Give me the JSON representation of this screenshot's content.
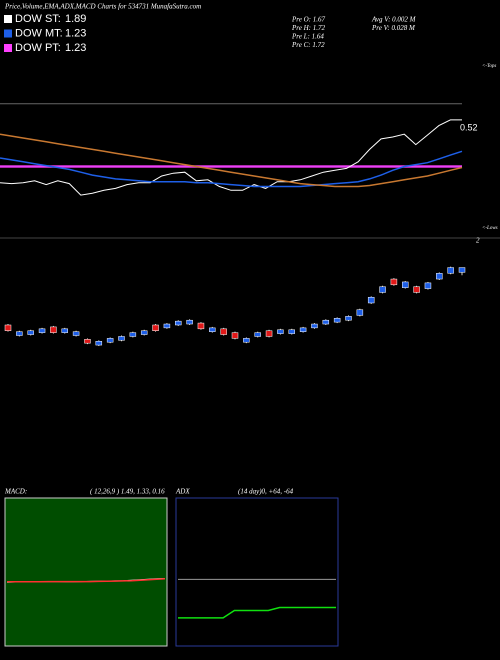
{
  "chart_data": [
    {
      "type": "line",
      "title": "Price,Volume,EMA,ADX,MACD Charts for 534731 MunafaSutra.com",
      "legend": [
        {
          "name": "DOW ST:",
          "value": 1.89,
          "color": "#ffffff"
        },
        {
          "name": "DOW MT:",
          "value": 1.23,
          "color": "#1e5fe8"
        },
        {
          "name": "DOW PT:",
          "value": 1.23,
          "color": "#ff40ff"
        }
      ],
      "info": [
        "Pre   O: 1.67",
        "Pre   H: 1.72",
        "Pre   L: 1.64",
        "Pre   C: 1.72",
        "Avg V: 0.002  M",
        "Pre   V: 0.028  M"
      ],
      "annotation": "0.52",
      "tops_label": "<-Tops",
      "lows_label": "<-Lows",
      "ylim": [
        0.51,
        2.35
      ],
      "series": [
        {
          "color": "#ffffff",
          "values": [
            1.06,
            1.05,
            1.06,
            1.08,
            1.04,
            1.08,
            1.05,
            0.93,
            0.95,
            0.98,
            1.0,
            1.04,
            1.06,
            1.06,
            1.13,
            1.16,
            1.17,
            1.08,
            1.09,
            1.02,
            0.98,
            0.98,
            1.04,
            1.0,
            1.07,
            1.07,
            1.09,
            1.13,
            1.17,
            1.19,
            1.21,
            1.28,
            1.41,
            1.52,
            1.54,
            1.57,
            1.46,
            1.56,
            1.66,
            1.72,
            1.72
          ]
        },
        {
          "color": "#1e5fe8",
          "values": [
            1.32,
            1.3,
            1.28,
            1.26,
            1.24,
            1.22,
            1.2,
            1.17,
            1.14,
            1.12,
            1.1,
            1.09,
            1.08,
            1.07,
            1.07,
            1.07,
            1.07,
            1.06,
            1.06,
            1.05,
            1.04,
            1.03,
            1.02,
            1.02,
            1.02,
            1.02,
            1.02,
            1.03,
            1.04,
            1.05,
            1.06,
            1.07,
            1.1,
            1.14,
            1.19,
            1.23,
            1.25,
            1.27,
            1.31,
            1.35,
            1.39
          ]
        },
        {
          "color": "#c87830",
          "values": [
            1.57,
            1.55,
            1.53,
            1.51,
            1.49,
            1.47,
            1.45,
            1.43,
            1.41,
            1.39,
            1.37,
            1.35,
            1.33,
            1.31,
            1.29,
            1.27,
            1.25,
            1.23,
            1.21,
            1.19,
            1.17,
            1.15,
            1.13,
            1.11,
            1.09,
            1.07,
            1.05,
            1.04,
            1.03,
            1.02,
            1.02,
            1.02,
            1.03,
            1.05,
            1.07,
            1.09,
            1.11,
            1.13,
            1.16,
            1.19,
            1.22
          ]
        }
      ]
    },
    {
      "type": "candlestick",
      "ylim": [
        -0.5,
        2.05
      ],
      "yticks": [
        2
      ],
      "up_color": "#1e5fe8",
      "down_color": "#e01818",
      "open": [
        1.12,
        1.01,
        1.02,
        1.04,
        1.1,
        1.04,
        1.01,
        0.97,
        0.91,
        0.94,
        0.96,
        1.0,
        1.02,
        1.12,
        1.09,
        1.12,
        1.13,
        1.14,
        1.05,
        1.08,
        1.04,
        0.94,
        1.0,
        1.06,
        1.03,
        1.03,
        1.05,
        1.09,
        1.13,
        1.15,
        1.17,
        1.22,
        1.35,
        1.46,
        1.6,
        1.51,
        1.52,
        1.5,
        1.6,
        1.66,
        1.67
      ],
      "high": [
        1.13,
        1.06,
        1.07,
        1.09,
        1.11,
        1.09,
        1.06,
        0.98,
        0.96,
        0.99,
        1.01,
        1.05,
        1.07,
        1.13,
        1.14,
        1.17,
        1.18,
        1.15,
        1.1,
        1.09,
        1.05,
        0.99,
        1.05,
        1.07,
        1.08,
        1.08,
        1.1,
        1.14,
        1.18,
        1.2,
        1.22,
        1.29,
        1.42,
        1.53,
        1.61,
        1.58,
        1.53,
        1.57,
        1.67,
        1.73,
        1.72
      ],
      "low": [
        1.05,
        1.0,
        1.01,
        1.03,
        1.03,
        1.03,
        1.0,
        0.92,
        0.9,
        0.93,
        0.95,
        0.99,
        1.01,
        1.05,
        1.08,
        1.11,
        1.12,
        1.07,
        1.04,
        1.01,
        0.97,
        0.93,
        0.99,
        0.99,
        1.02,
        1.02,
        1.04,
        1.08,
        1.12,
        1.14,
        1.16,
        1.21,
        1.34,
        1.45,
        1.53,
        1.5,
        1.45,
        1.49,
        1.59,
        1.65,
        1.64
      ],
      "close": [
        1.06,
        1.05,
        1.06,
        1.08,
        1.04,
        1.08,
        1.05,
        0.93,
        0.95,
        0.98,
        1.0,
        1.04,
        1.06,
        1.06,
        1.13,
        1.16,
        1.17,
        1.08,
        1.09,
        1.02,
        0.98,
        0.98,
        1.04,
        1.0,
        1.07,
        1.07,
        1.09,
        1.13,
        1.17,
        1.19,
        1.21,
        1.28,
        1.41,
        1.52,
        1.54,
        1.57,
        1.46,
        1.56,
        1.66,
        1.72,
        1.72
      ]
    },
    {
      "type": "line",
      "title": "MACD:",
      "params": "( 12,26,9 ) 1.49,  1.33,  0.16",
      "background": "#004d00",
      "ylim": [
        -35,
        45
      ],
      "series": [
        {
          "color": "#ffffff",
          "values": [
            -0.5,
            -0.4,
            -0.3,
            -0.3,
            -0.2,
            -0.2,
            -0.2,
            -0.3,
            -0.3,
            -0.2,
            -0.1,
            0,
            0.1,
            0.2,
            0.3,
            0.5,
            0.8,
            1.1,
            1.3,
            1.49
          ]
        },
        {
          "color": "#ff3030",
          "values": [
            -0.3,
            -0.3,
            -0.3,
            -0.3,
            -0.3,
            -0.2,
            -0.2,
            -0.2,
            -0.2,
            -0.2,
            -0.2,
            -0.1,
            0,
            0.1,
            0.2,
            0.3,
            0.5,
            0.8,
            1.1,
            1.33
          ]
        }
      ]
    },
    {
      "type": "line",
      "title": "ADX",
      "params": "(14  day)0,  +64,  -64",
      "background": "#000000",
      "ylim": [
        0,
        100
      ],
      "series": [
        {
          "color": "#9a9a9a",
          "values": [
            45,
            45,
            45,
            45,
            45,
            45,
            45,
            45,
            45,
            45,
            45,
            45,
            45,
            45,
            45
          ]
        },
        {
          "color": "#10e010",
          "values": [
            19,
            19,
            19,
            19,
            19,
            24,
            24,
            24,
            24,
            26,
            26,
            26,
            26,
            26,
            26
          ]
        }
      ]
    }
  ]
}
